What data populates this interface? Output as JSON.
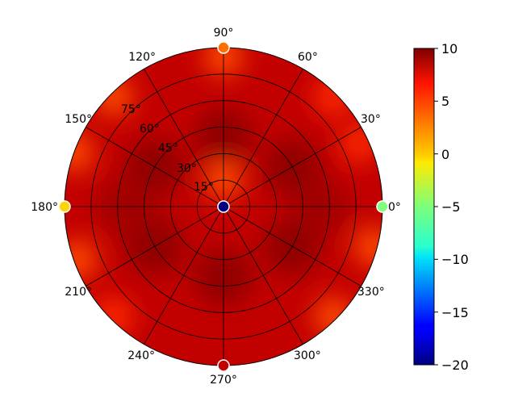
{
  "chart_data": {
    "type": "heatmap",
    "title": "",
    "projection": "polar",
    "angular_ticks": [
      "0°",
      "30°",
      "60°",
      "90°",
      "120°",
      "150°",
      "180°",
      "210°",
      "240°",
      "270°",
      "300°",
      "330°"
    ],
    "radial_ticks": [
      "15°",
      "30°",
      "45°",
      "60°",
      "75°"
    ],
    "radial_tick_values": [
      15,
      30,
      45,
      60,
      75
    ],
    "radial_range": [
      0,
      90
    ],
    "grid": true,
    "colormap": "jet",
    "clim": [
      -20,
      10
    ],
    "colorbar": {
      "ticks": [
        "10",
        "5",
        "0",
        "−5",
        "−10",
        "−15",
        "−20"
      ],
      "tick_values": [
        10,
        5,
        0,
        -5,
        -10,
        -15,
        -20
      ],
      "placement": "right"
    },
    "background_level": 8,
    "highlight_regions": [
      {
        "theta": 90,
        "r": 40,
        "value": 9.5
      },
      {
        "theta": 150,
        "r": 45,
        "value": 9.5
      },
      {
        "theta": 210,
        "r": 45,
        "value": 9.5
      },
      {
        "theta": 270,
        "r": 40,
        "value": 9.5
      },
      {
        "theta": 330,
        "r": 45,
        "value": 9.5
      },
      {
        "theta": 30,
        "r": 45,
        "value": 9.5
      },
      {
        "theta": 0,
        "r": 55,
        "value": 9.0
      },
      {
        "theta": 180,
        "r": 55,
        "value": 9.0
      },
      {
        "theta": 90,
        "r": 15,
        "value": 4.0
      },
      {
        "theta": 90,
        "r": 85,
        "value": 4.0
      },
      {
        "theta": 135,
        "r": 88,
        "value": 4.0
      },
      {
        "theta": 160,
        "r": 90,
        "value": 4.0
      },
      {
        "theta": 45,
        "r": 88,
        "value": 5.0
      },
      {
        "theta": 25,
        "r": 85,
        "value": 5.0
      },
      {
        "theta": 345,
        "r": 88,
        "value": 4.0
      },
      {
        "theta": 315,
        "r": 88,
        "value": 4.0
      },
      {
        "theta": 200,
        "r": 88,
        "value": 4.0
      },
      {
        "theta": 225,
        "r": 88,
        "value": 5.0
      }
    ],
    "markers": [
      {
        "theta": 0,
        "r": 0,
        "value": -20
      },
      {
        "theta": 0,
        "r": 90,
        "value": -5
      },
      {
        "theta": 90,
        "r": 90,
        "value": 3
      },
      {
        "theta": 180,
        "r": 90,
        "value": 0
      },
      {
        "theta": 270,
        "r": 90,
        "value": 8
      }
    ]
  }
}
